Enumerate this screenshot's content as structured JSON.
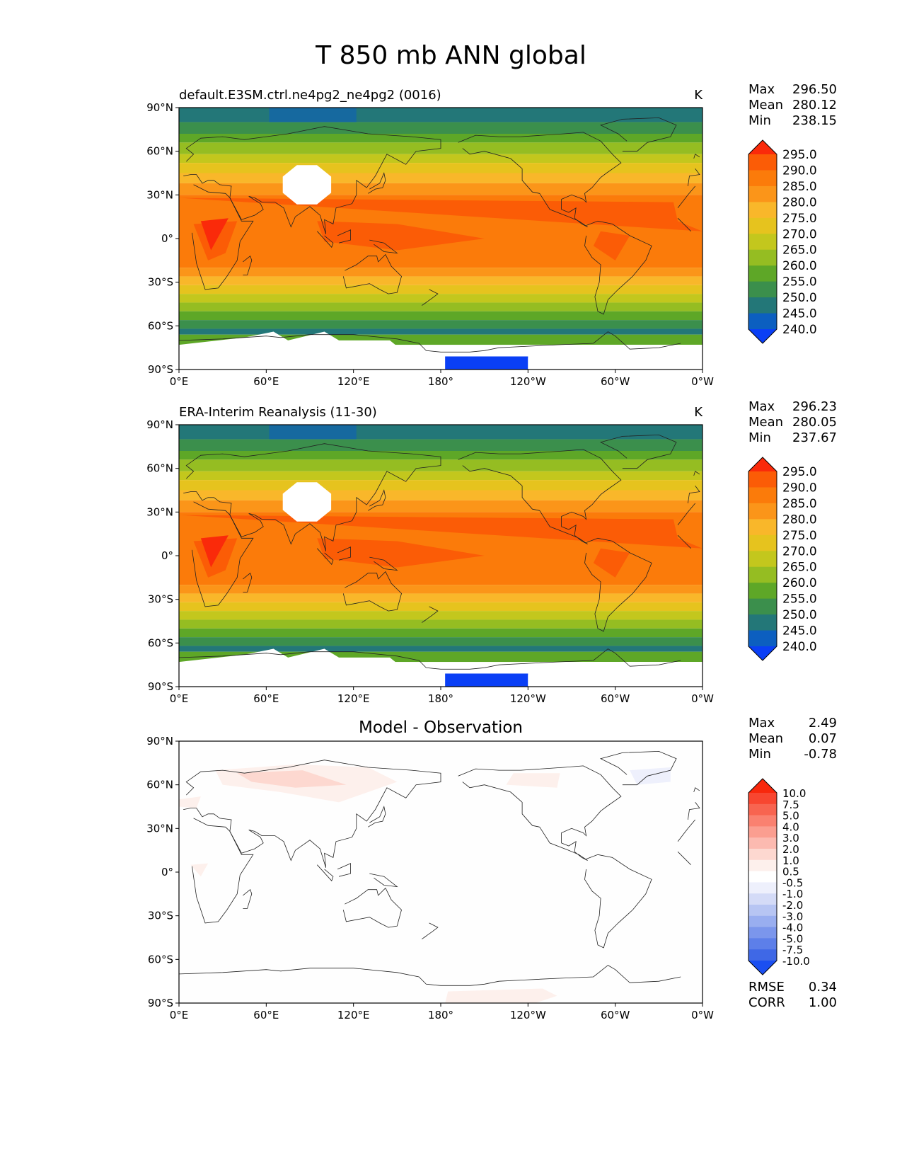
{
  "title": "T 850 mb ANN global",
  "panels": [
    {
      "id": "model",
      "title_left": "default.E3SM.ctrl.ne4pg2_ne4pg2 (0016)",
      "title_center": "",
      "units": "K",
      "stats": [
        {
          "label": "Max",
          "value": "296.50"
        },
        {
          "label": "Mean",
          "value": "280.12"
        },
        {
          "label": "Min",
          "value": "238.15"
        }
      ],
      "colorbar_labels": [
        "295.0",
        "290.0",
        "285.0",
        "280.0",
        "275.0",
        "270.0",
        "265.0",
        "260.0",
        "255.0",
        "250.0",
        "245.0",
        "240.0"
      ],
      "colorbar_colors": [
        "#fa2a0a",
        "#fb5c06",
        "#fb7b0a",
        "#fb9519",
        "#f9b72a",
        "#e6c31e",
        "#c3c71d",
        "#95bd22",
        "#5ea727",
        "#3b8f4c",
        "#237778",
        "#0c5fc0",
        "#0a3ff5"
      ]
    },
    {
      "id": "obs",
      "title_left": "ERA-Interim Reanalysis (11-30)",
      "title_center": "",
      "units": "K",
      "stats": [
        {
          "label": "Max",
          "value": "296.23"
        },
        {
          "label": "Mean",
          "value": "280.05"
        },
        {
          "label": "Min",
          "value": "237.67"
        }
      ],
      "colorbar_labels": [
        "295.0",
        "290.0",
        "285.0",
        "280.0",
        "275.0",
        "270.0",
        "265.0",
        "260.0",
        "255.0",
        "250.0",
        "245.0",
        "240.0"
      ],
      "colorbar_colors": [
        "#fa2a0a",
        "#fb5c06",
        "#fb7b0a",
        "#fb9519",
        "#f9b72a",
        "#e6c31e",
        "#c3c71d",
        "#95bd22",
        "#5ea727",
        "#3b8f4c",
        "#237778",
        "#0c5fc0",
        "#0a3ff5"
      ]
    },
    {
      "id": "diff",
      "title_left": "",
      "title_center": "Model - Observation",
      "units": "",
      "stats": [
        {
          "label": "Max",
          "value": "2.49"
        },
        {
          "label": "Mean",
          "value": "0.07"
        },
        {
          "label": "Min",
          "value": "-0.78"
        }
      ],
      "colorbar_labels": [
        "10.0",
        "7.5",
        "5.0",
        "4.0",
        "3.0",
        "2.0",
        "1.0",
        "0.5",
        "-0.5",
        "-1.0",
        "-2.0",
        "-3.0",
        "-4.0",
        "-5.0",
        "-7.5",
        "-10.0"
      ],
      "colorbar_colors": [
        "#f8280c",
        "#f84630",
        "#f86450",
        "#fa8170",
        "#fb9e90",
        "#fcbab0",
        "#fdd8d0",
        "#fdf0ec",
        "#ffffff",
        "#eef0fc",
        "#d4dbf7",
        "#b7c5f3",
        "#99aef0",
        "#7b96ec",
        "#5d7fe9",
        "#3f68e6",
        "#1b4ff1"
      ],
      "extra_stats": [
        {
          "label": "RMSE",
          "value": "0.34"
        },
        {
          "label": "CORR",
          "value": "1.00"
        }
      ]
    }
  ],
  "lat_ticks": [
    "90°N",
    "60°N",
    "30°N",
    "0°",
    "30°S",
    "60°S",
    "90°S"
  ],
  "lon_ticks": [
    "0°E",
    "60°E",
    "120°E",
    "180°",
    "120°W",
    "60°W",
    "0°W"
  ]
}
